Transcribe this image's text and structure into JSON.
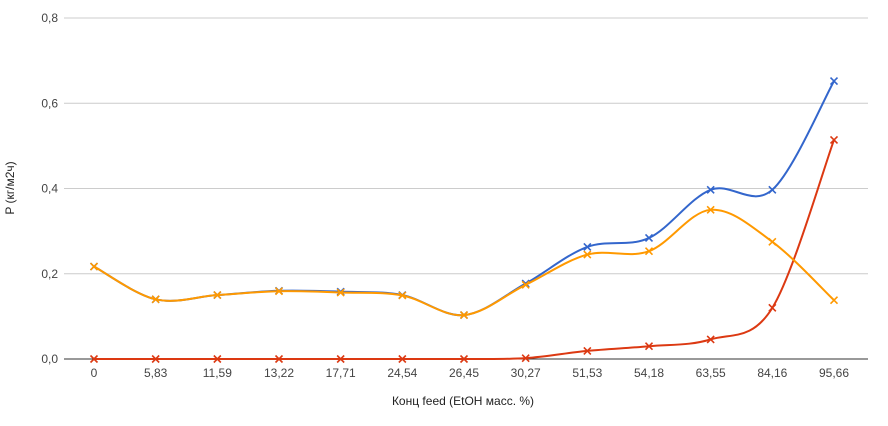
{
  "chart_data": {
    "type": "line",
    "xlabel": "Конц feed (EtOH масс. %)",
    "ylabel": "P (кг/м2ч)",
    "categories": [
      "0",
      "5,83",
      "11,59",
      "13,22",
      "17,71",
      "24,54",
      "26,45",
      "30,27",
      "51,53",
      "54,18",
      "63,55",
      "84,16",
      "95,66"
    ],
    "ylim": [
      0,
      0.8
    ],
    "yticks": [
      "0,0",
      "0,2",
      "0,4",
      "0,6",
      "0,8"
    ],
    "grid": true,
    "legend": "none",
    "series": [
      {
        "color": "#3366cc",
        "values": [
          0.217,
          0.14,
          0.15,
          0.16,
          0.158,
          0.15,
          0.103,
          0.177,
          0.263,
          0.284,
          0.397,
          0.397,
          0.652
        ]
      },
      {
        "color": "#dc3912",
        "values": [
          0.0,
          0.0,
          0.0,
          0.0,
          0.0,
          0.0,
          0.0,
          0.002,
          0.019,
          0.03,
          0.046,
          0.12,
          0.514
        ]
      },
      {
        "color": "#ff9900",
        "values": [
          0.217,
          0.14,
          0.15,
          0.159,
          0.156,
          0.149,
          0.103,
          0.174,
          0.245,
          0.253,
          0.35,
          0.275,
          0.138
        ]
      }
    ]
  }
}
